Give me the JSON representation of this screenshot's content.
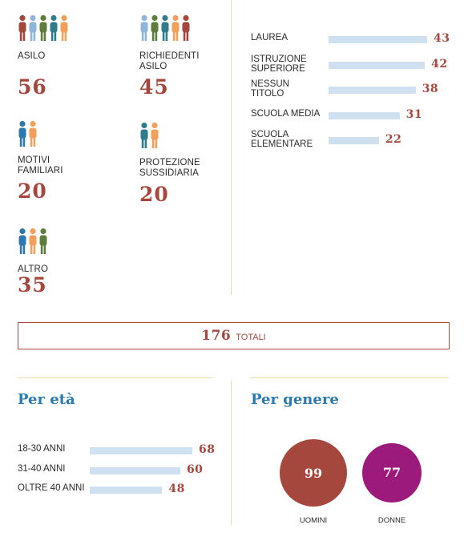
{
  "colors": {
    "accent_red": "#a6473d",
    "title_blue": "#2a7ab2",
    "bar_blue": "#cfe0f1",
    "divider": "#ecd6a6",
    "women_purple": "#9b1a7b",
    "person_blue": "#2e78ad",
    "person_light_blue": "#8fb6da",
    "person_orange": "#f0a05a",
    "person_red": "#a6473d",
    "person_green": "#5e7d3c",
    "person_teal": "#2d7e8a"
  },
  "categories": [
    {
      "label": "ASILO",
      "value": "56",
      "icons": [
        "person_red",
        "person_light_blue",
        "person_green",
        "person_teal",
        "person_orange"
      ]
    },
    {
      "label": "RICHIEDENTI ASILO",
      "value": "45",
      "icons": [
        "person_light_blue",
        "person_green",
        "person_teal",
        "person_orange",
        "person_red"
      ]
    },
    {
      "label": "MOTIVI FAMILIARI",
      "value": "20",
      "icons": [
        "person_blue",
        "person_orange"
      ]
    },
    {
      "label": "PROTEZIONE SUSSIDIARIA",
      "value": "20",
      "icons": [
        "person_teal",
        "person_orange"
      ]
    },
    {
      "label": "ALTRO",
      "value": "35",
      "icons": [
        "person_blue",
        "person_orange",
        "person_green"
      ]
    }
  ],
  "totals": {
    "value": "176",
    "label": "TOTALI"
  },
  "sections": {
    "eta_title": "Per età",
    "genere_title": "Per genere"
  },
  "chart_data": [
    {
      "type": "bar",
      "orientation": "horizontal",
      "title": "",
      "categories": [
        "LAUREA",
        "ISTRUZIONE SUPERIORE",
        "NESSUN TITOLO",
        "SCUOLA MEDIA",
        "SCUOLA ELEMENTARE"
      ],
      "values": [
        43,
        42,
        38,
        31,
        22
      ],
      "xlim": [
        0,
        43
      ],
      "grid": false,
      "legend": "none"
    },
    {
      "type": "bar",
      "orientation": "horizontal",
      "title": "Per età",
      "categories": [
        "18-30 ANNI",
        "31-40 ANNI",
        "OLTRE 40 ANNI"
      ],
      "values": [
        68,
        60,
        48
      ],
      "xlim": [
        0,
        68
      ],
      "grid": false,
      "legend": "none"
    },
    {
      "type": "bubble",
      "title": "Per genere",
      "categories": [
        "UOMINI",
        "DONNE"
      ],
      "values": [
        99,
        77
      ],
      "colors": [
        "#a6473d",
        "#9b1a7b"
      ]
    }
  ]
}
